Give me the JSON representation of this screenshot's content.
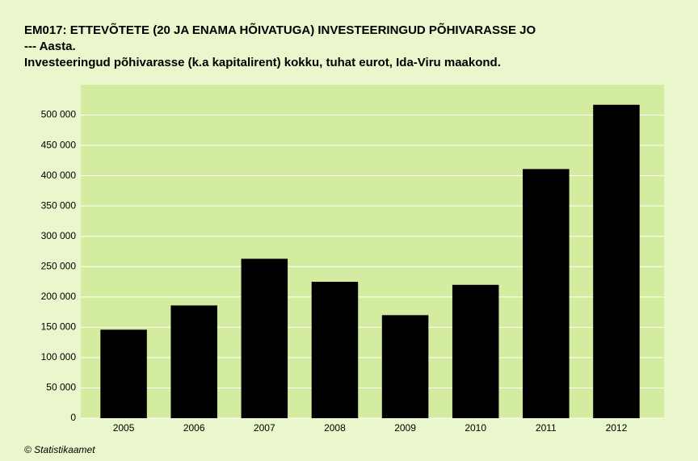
{
  "chart_data": {
    "type": "bar",
    "title": "EM017: ETTEVÕTETE (20 JA ENAMA HÕIVATUGA) INVESTEERINGUD PÕHIVARASSE JO",
    "subtitle": "--- Aasta.",
    "subtitle2": "Investeeringud põhivarasse (k.a kapitalirent) kokku, tuhat eurot, Ida-Viru maakond.",
    "source": "© Statistikaamet",
    "categories": [
      "2005",
      "2006",
      "2007",
      "2008",
      "2009",
      "2010",
      "2011",
      "2012"
    ],
    "values": [
      146000,
      186000,
      263000,
      225000,
      170000,
      220000,
      411000,
      517000
    ],
    "color": "#000000",
    "ylim": [
      0,
      550000
    ],
    "yticks": [
      0,
      {
        "value": 50000,
        "label": "50 000"
      },
      {
        "value": 100000,
        "label": "100 000"
      },
      {
        "value": 150000,
        "label": "150 000"
      },
      {
        "value": 200000,
        "label": "200 000"
      },
      {
        "value": 250000,
        "label": "250 000"
      },
      {
        "value": 300000,
        "label": "300 000"
      },
      {
        "value": 350000,
        "label": "350 000"
      },
      {
        "value": 400000,
        "label": "400 000"
      },
      {
        "value": 450000,
        "label": "450 000"
      },
      {
        "value": 500000,
        "label": "500 000"
      }
    ],
    "grid": true
  }
}
